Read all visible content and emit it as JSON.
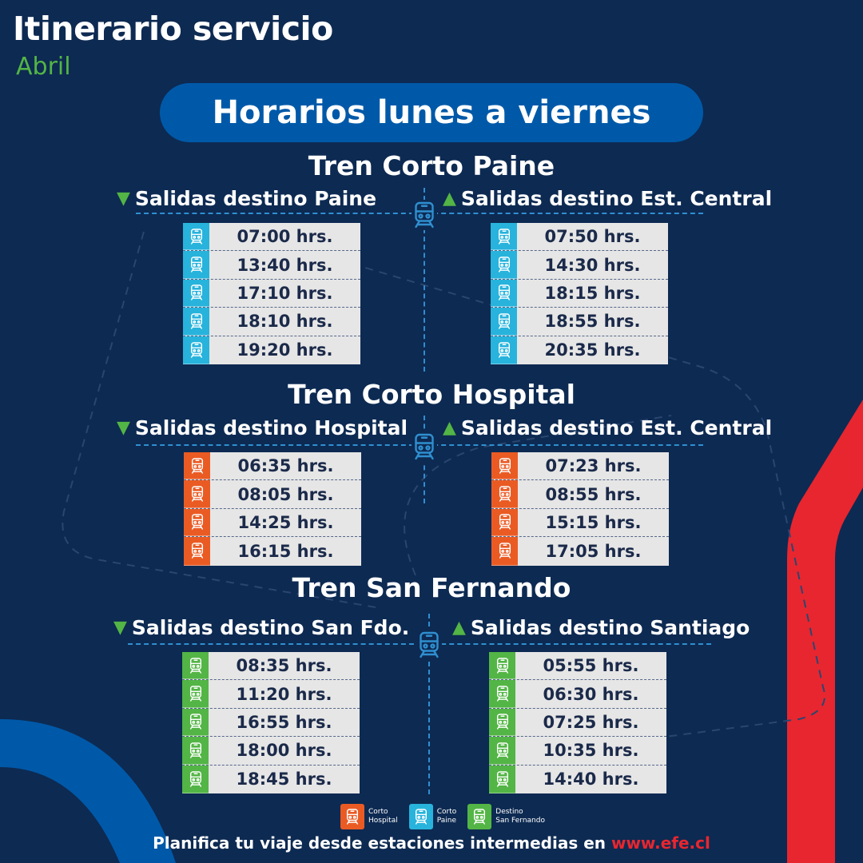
{
  "header": {
    "title": "Itinerario servicio",
    "month": "Abril"
  },
  "banner": "Horarios lunes a viernes",
  "colors": {
    "hospital": "#ea5b24",
    "paine": "#27b3dc",
    "san_fernando": "#53b545",
    "background": "#0d2a52",
    "accent": "#e8262f"
  },
  "sections": [
    {
      "title": "Tren Corto Paine",
      "left": {
        "arrow": "▼",
        "label": "Salidas destino Paine",
        "times": [
          "07:00 hrs.",
          "13:40 hrs.",
          "17:10 hrs.",
          "18:10 hrs.",
          "19:20 hrs."
        ]
      },
      "right": {
        "arrow": "▲",
        "label": "Salidas destino Est. Central",
        "times": [
          "07:50 hrs.",
          "14:30 hrs.",
          "18:15 hrs.",
          "18:55 hrs.",
          "20:35 hrs."
        ]
      }
    },
    {
      "title": "Tren Corto Hospital",
      "left": {
        "arrow": "▼",
        "label": "Salidas destino Hospital",
        "times": [
          "06:35 hrs.",
          "08:05 hrs.",
          "14:25 hrs.",
          "16:15 hrs."
        ]
      },
      "right": {
        "arrow": "▲",
        "label": "Salidas destino Est. Central",
        "times": [
          "07:23 hrs.",
          "08:55 hrs.",
          "15:15 hrs.",
          "17:05 hrs."
        ]
      }
    },
    {
      "title": "Tren San Fernando",
      "left": {
        "arrow": "▼",
        "label": "Salidas destino San Fdo.",
        "times": [
          "08:35 hrs.",
          "11:20 hrs.",
          "16:55 hrs.",
          "18:00 hrs.",
          "18:45 hrs."
        ]
      },
      "right": {
        "arrow": "▲",
        "label": "Salidas destino Santiago",
        "times": [
          "05:55 hrs.",
          "06:30 hrs.",
          "07:25 hrs.",
          "10:35 hrs.",
          "14:40 hrs."
        ]
      }
    }
  ],
  "legend": [
    {
      "line1": "Corto",
      "line2": "Hospital",
      "color": "#ea5b24"
    },
    {
      "line1": "Corto",
      "line2": "Paine",
      "color": "#27b3dc"
    },
    {
      "line1": "Destino",
      "line2": "San Fernando",
      "color": "#53b545"
    }
  ],
  "footer": {
    "text": "Planifica tu viaje desde estaciones intermedias en ",
    "url": "www.efe.cl"
  }
}
